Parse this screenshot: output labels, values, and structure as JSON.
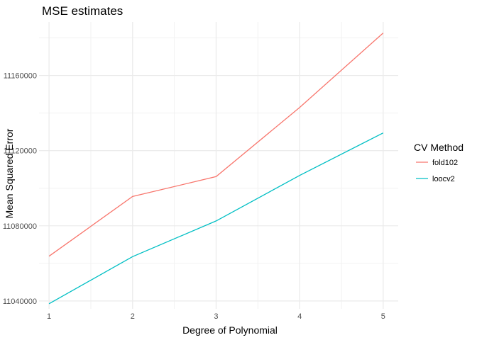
{
  "chart_data": {
    "type": "line",
    "title": "MSE estimates",
    "xlabel": "Degree of Polynomial",
    "ylabel": "Mean Squared Error",
    "x": [
      1,
      2,
      3,
      4,
      5
    ],
    "x_tick_labels": [
      "1",
      "2",
      "3",
      "4",
      "5"
    ],
    "y_ticks": [
      11040000,
      11080000,
      11120000,
      11160000
    ],
    "y_tick_labels": [
      "11040000",
      "11080000",
      "11120000",
      "11160000"
    ],
    "xlim": [
      0.88,
      5.18
    ],
    "ylim": [
      11035800,
      11188500
    ],
    "grid": true,
    "legend": {
      "title": "CV Method",
      "position": "right"
    },
    "series": [
      {
        "name": "fold102",
        "color": "#F8766D",
        "values": [
          11063800,
          11095600,
          11106200,
          11143000,
          11182600
        ]
      },
      {
        "name": "loocv2",
        "color": "#00BFC4",
        "values": [
          11038500,
          11063600,
          11082600,
          11106800,
          11129400
        ]
      }
    ]
  }
}
